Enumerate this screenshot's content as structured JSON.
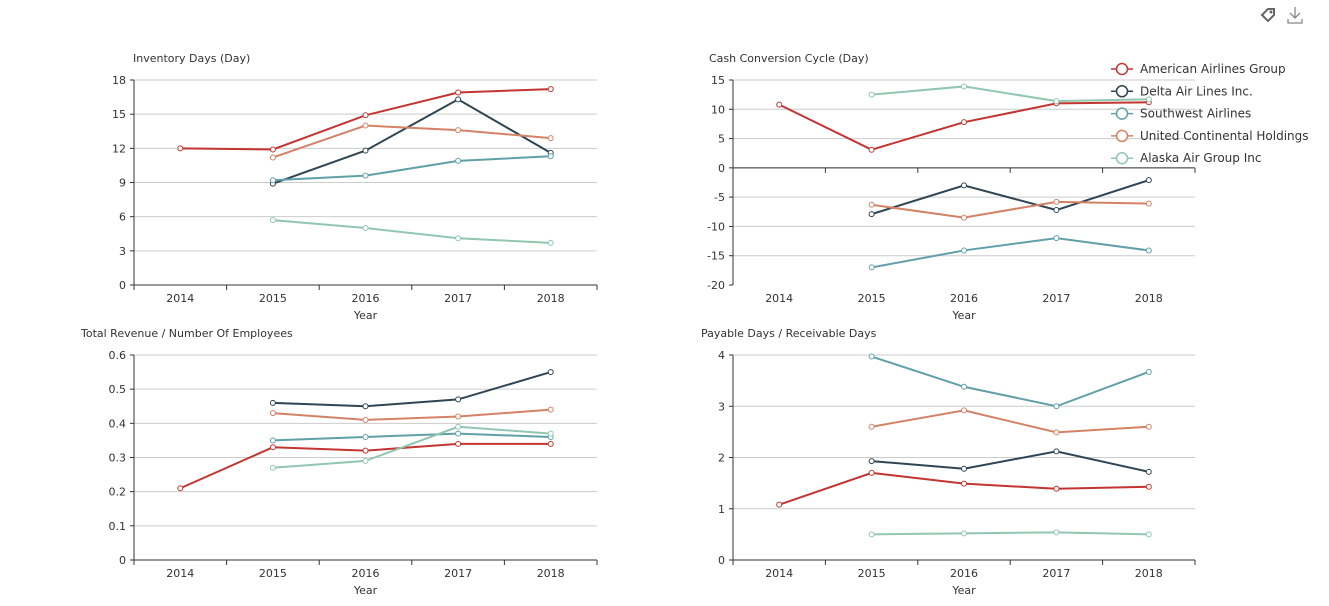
{
  "toolbar": {
    "icons": [
      "tag-icon",
      "download-icon"
    ]
  },
  "legend": [
    {
      "name": "American Airlines Group",
      "color": "#c23531"
    },
    {
      "name": "Delta Air Lines Inc.",
      "color": "#2f4554"
    },
    {
      "name": "Southwest Airlines",
      "color": "#61a0a8"
    },
    {
      "name": "United Continental Holdings",
      "color": "#d48265"
    },
    {
      "name": "Alaska Air Group Inc",
      "color": "#91c7ae"
    }
  ],
  "chart_data": [
    {
      "type": "line",
      "title": "Inventory Days (Day)",
      "xlabel": "Year",
      "categories": [
        "2014",
        "2015",
        "2016",
        "2017",
        "2018"
      ],
      "ylim": [
        0,
        18
      ],
      "yticks": [
        0,
        3,
        6,
        9,
        12,
        15,
        18
      ],
      "grid": true,
      "series": [
        {
          "name": "American Airlines Group",
          "values": [
            12.0,
            11.9,
            14.9,
            16.9,
            17.2
          ]
        },
        {
          "name": "Delta Air Lines Inc.",
          "values": [
            null,
            8.9,
            11.8,
            16.3,
            11.6
          ]
        },
        {
          "name": "Southwest Airlines",
          "values": [
            null,
            9.2,
            9.6,
            10.9,
            11.3
          ]
        },
        {
          "name": "United Continental Holdings",
          "values": [
            null,
            11.2,
            14.0,
            13.6,
            12.9
          ]
        },
        {
          "name": "Alaska Air Group Inc",
          "values": [
            null,
            5.7,
            5.0,
            4.1,
            3.7
          ]
        }
      ]
    },
    {
      "type": "line",
      "title": "Cash Conversion Cycle (Day)",
      "xlabel": "Year",
      "categories": [
        "2014",
        "2015",
        "2016",
        "2017",
        "2018"
      ],
      "ylim": [
        -20,
        15
      ],
      "yticks": [
        -20,
        -15,
        -10,
        -5,
        0,
        5,
        10,
        15
      ],
      "grid": true,
      "legend": "top-right",
      "series": [
        {
          "name": "American Airlines Group",
          "values": [
            10.8,
            3.1,
            7.8,
            11.0,
            11.2
          ]
        },
        {
          "name": "Delta Air Lines Inc.",
          "values": [
            null,
            -7.9,
            -3.0,
            -7.2,
            -2.1
          ]
        },
        {
          "name": "Southwest Airlines",
          "values": [
            null,
            -17.0,
            -14.1,
            -12.0,
            -14.1
          ]
        },
        {
          "name": "United Continental Holdings",
          "values": [
            null,
            -6.3,
            -8.5,
            -5.8,
            -6.1
          ]
        },
        {
          "name": "Alaska Air Group Inc",
          "values": [
            null,
            12.5,
            13.9,
            11.4,
            11.7
          ]
        }
      ]
    },
    {
      "type": "line",
      "title": "Total Revenue / Number Of Employees",
      "xlabel": "Year",
      "categories": [
        "2014",
        "2015",
        "2016",
        "2017",
        "2018"
      ],
      "ylim": [
        0,
        0.6
      ],
      "yticks": [
        0,
        0.1,
        0.2,
        0.3,
        0.4,
        0.5,
        0.6
      ],
      "grid": true,
      "series": [
        {
          "name": "American Airlines Group",
          "values": [
            0.21,
            0.33,
            0.32,
            0.34,
            0.34
          ]
        },
        {
          "name": "Delta Air Lines Inc.",
          "values": [
            null,
            0.46,
            0.45,
            0.47,
            0.55
          ]
        },
        {
          "name": "Southwest Airlines",
          "values": [
            null,
            0.35,
            0.36,
            0.37,
            0.36
          ]
        },
        {
          "name": "United Continental Holdings",
          "values": [
            null,
            0.43,
            0.41,
            0.42,
            0.44
          ]
        },
        {
          "name": "Alaska Air Group Inc",
          "values": [
            null,
            0.27,
            0.29,
            0.39,
            0.37
          ]
        }
      ]
    },
    {
      "type": "line",
      "title": "Payable Days / Receivable Days",
      "xlabel": "Year",
      "categories": [
        "2014",
        "2015",
        "2016",
        "2017",
        "2018"
      ],
      "ylim": [
        0,
        4
      ],
      "yticks": [
        0,
        1,
        2,
        3,
        4
      ],
      "grid": true,
      "series": [
        {
          "name": "American Airlines Group",
          "values": [
            1.08,
            1.7,
            1.49,
            1.39,
            1.43
          ]
        },
        {
          "name": "Delta Air Lines Inc.",
          "values": [
            null,
            1.93,
            1.78,
            2.12,
            1.72
          ]
        },
        {
          "name": "Southwest Airlines",
          "values": [
            null,
            3.97,
            3.38,
            3.0,
            3.67
          ]
        },
        {
          "name": "United Continental Holdings",
          "values": [
            null,
            2.6,
            2.92,
            2.49,
            2.6
          ]
        },
        {
          "name": "Alaska Air Group Inc",
          "values": [
            null,
            0.5,
            0.52,
            0.54,
            0.5
          ]
        }
      ]
    }
  ]
}
